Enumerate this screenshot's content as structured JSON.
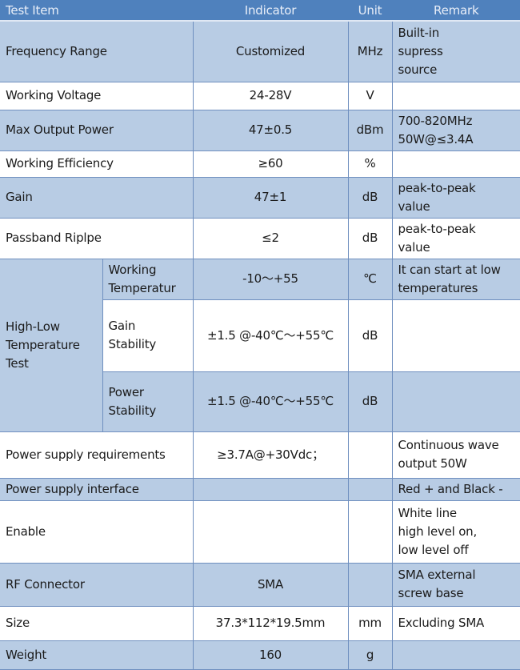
{
  "header": {
    "test_item": "Test Item",
    "indicator": "Indicator",
    "unit": "Unit",
    "remark": "Remark"
  },
  "rows": [
    {
      "item": "Frequency Range",
      "indicator": "Customized",
      "unit": "MHz",
      "remark": [
        "Built-in",
        "supress",
        "source"
      ]
    },
    {
      "item": "Working Voltage",
      "indicator": "24-28V",
      "unit": "V",
      "remark": [
        ""
      ]
    },
    {
      "item": "Max Output Power",
      "indicator": "47±0.5",
      "unit": "dBm",
      "remark": [
        "700-820MHz",
        "50W@≤3.4A"
      ]
    },
    {
      "item": "Working Efficiency",
      "indicator": "≥60",
      "unit": "%",
      "remark": [
        ""
      ]
    },
    {
      "item": "Gain",
      "indicator": "47±1",
      "unit": "dB",
      "remark": [
        "peak-to-peak",
        "value"
      ]
    },
    {
      "item": "Passband Riplpe",
      "indicator": "≤2",
      "unit": "dB",
      "remark": [
        "peak-to-peak",
        "value"
      ]
    }
  ],
  "temp_group": {
    "label": [
      "High-Low",
      "Temperature",
      "Test"
    ],
    "sub": [
      {
        "item": [
          "Working",
          "Temperatur"
        ],
        "indicator": "-10～+55",
        "unit": "℃",
        "remark": [
          "It can start at low",
          "temperatures"
        ]
      },
      {
        "item": [
          "Gain",
          "Stability"
        ],
        "indicator": "±1.5 @-40℃～+55℃",
        "unit": "dB",
        "remark": [
          ""
        ]
      },
      {
        "item": [
          "Power",
          "Stability"
        ],
        "indicator": "±1.5 @-40℃～+55℃",
        "unit": "dB",
        "remark": [
          ""
        ]
      }
    ]
  },
  "rows2": [
    {
      "item": "Power supply requirements",
      "indicator": "≥3.7A@+30Vdc；",
      "unit": "",
      "remark": [
        "Continuous  wave",
        "output 50W"
      ]
    },
    {
      "item": "Power supply interface",
      "indicator": "",
      "unit": "",
      "remark": [
        "Red + and Black -"
      ]
    },
    {
      "item": "Enable",
      "indicator": "",
      "unit": "",
      "remark": [
        "White line",
        "high level on,",
        "low level off"
      ]
    },
    {
      "item": "RF Connector",
      "indicator": "SMA",
      "unit": "",
      "remark": [
        "SMA external",
        "screw base"
      ]
    },
    {
      "item": "Size",
      "indicator": "37.3*112*19.5mm",
      "unit": "mm",
      "remark": [
        "Excluding SMA"
      ]
    },
    {
      "item": "Weight",
      "indicator": "160",
      "unit": "g",
      "remark": [
        ""
      ]
    }
  ],
  "colors": {
    "header": "#4f81bd",
    "row_blue": "#b8cce4",
    "row_white": "#ffffff"
  }
}
